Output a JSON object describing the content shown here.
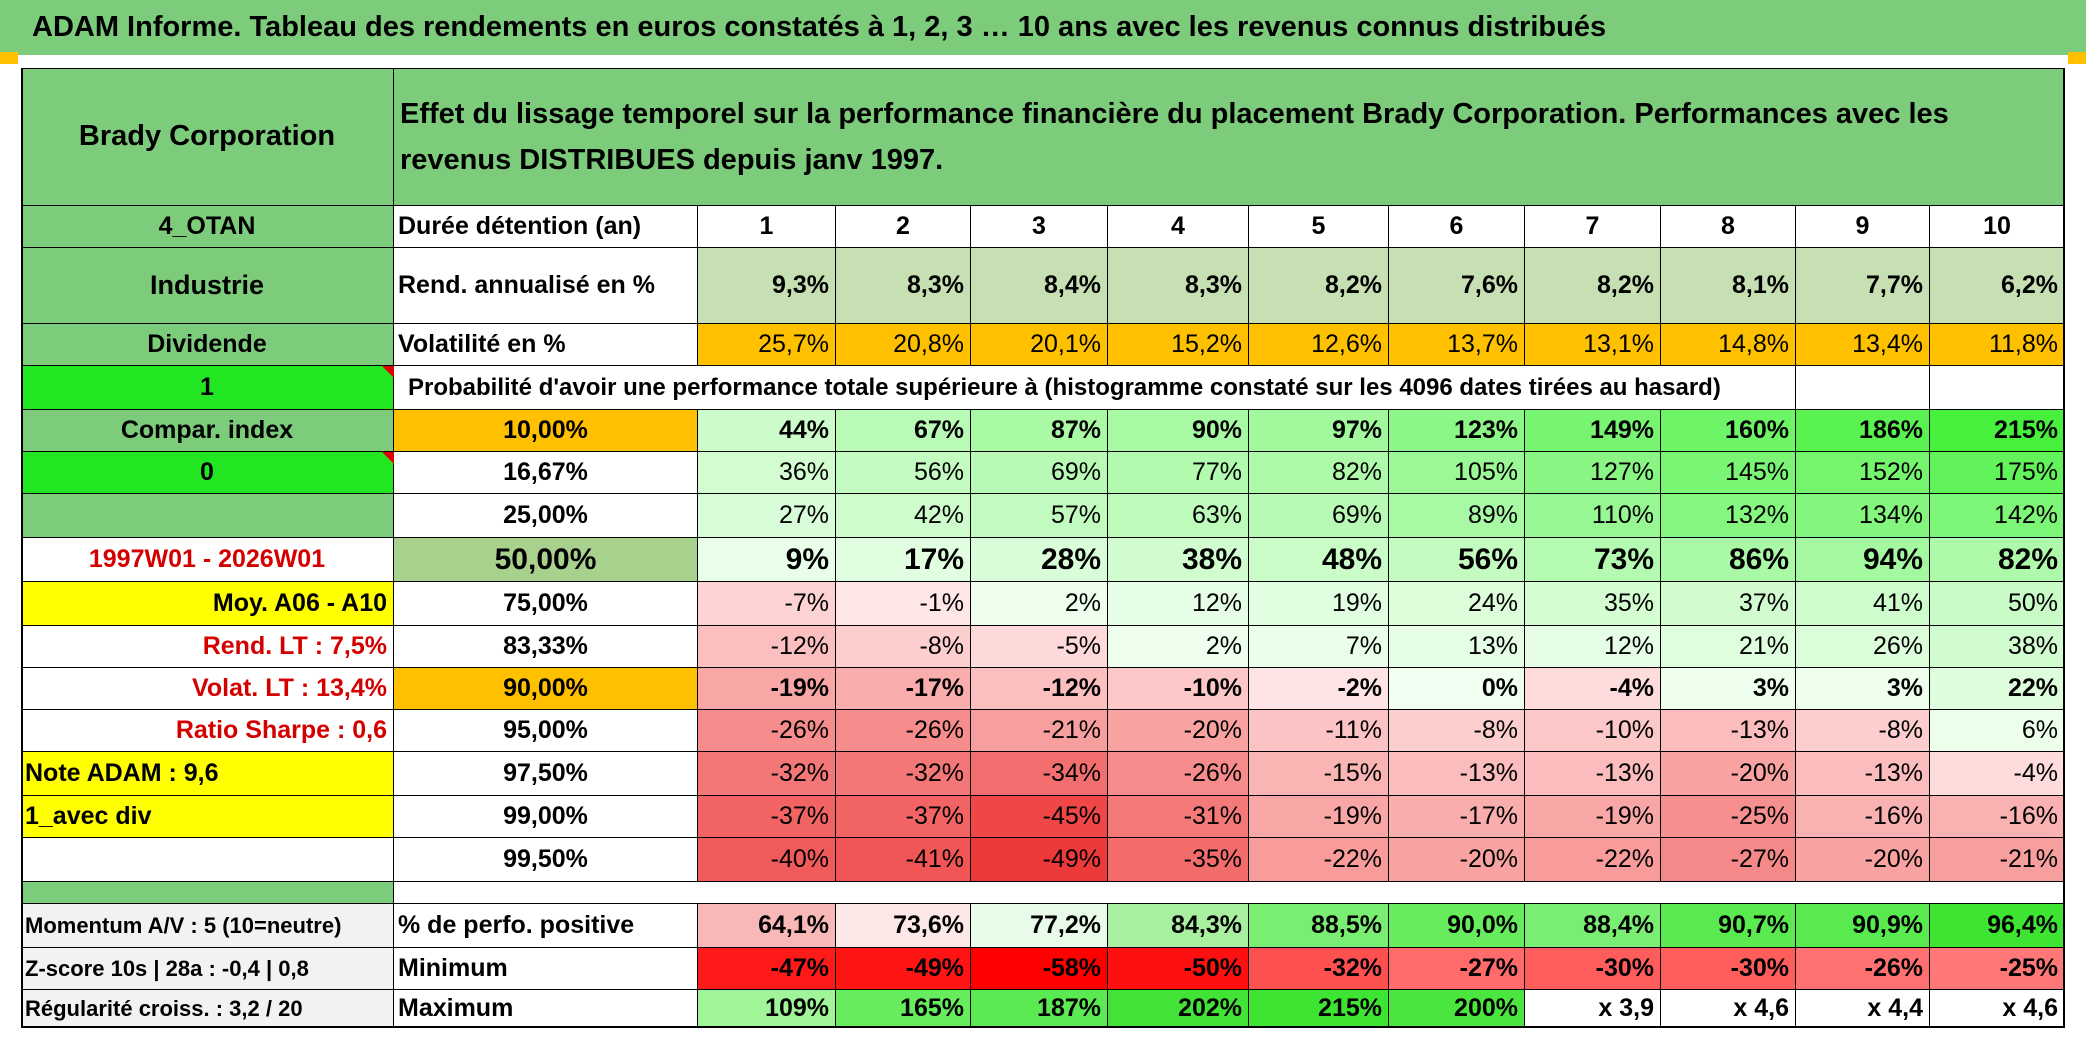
{
  "title": "ADAM Informe. Tableau des rendements en euros constatés à 1, 2, 3 … 10 ans avec les revenus connus distribués",
  "left": {
    "company": "Brady Corporation",
    "code": "4_OTAN",
    "sector": "Industrie",
    "dividend_label": "Dividende",
    "flag1": "1",
    "compar_index": "Compar. index",
    "flag0": "0",
    "period": "1997W01 - 2026W01",
    "moy": "Moy. A06 - A10",
    "rend_lt": "Rend. LT :   7,5%",
    "volat_lt": "Volat. LT :   13,4%",
    "sharpe": "Ratio Sharpe :    0,6",
    "note": "Note ADAM : 9,6",
    "avec_div": "1_avec div"
  },
  "header_text": "Effet du lissage temporel sur la performance financière du placement Brady Corporation. Performances avec les revenus DISTRIBUES depuis janv 1997.",
  "labels": {
    "duree": "Durée détention (an)",
    "rend": "Rend. annualisé en %",
    "vol": "Volatilité en %",
    "proba": "Probabilité d'avoir une performance totale supérieure à (histogramme constaté sur les 4096 dates tirées au hasard)",
    "positive": "% de perfo. positive",
    "minimum": "Minimum",
    "maximum": "Maximum"
  },
  "years": [
    "1",
    "2",
    "3",
    "4",
    "5",
    "6",
    "7",
    "8",
    "9",
    "10"
  ],
  "rend": [
    "9,3%",
    "8,3%",
    "8,4%",
    "8,3%",
    "8,2%",
    "7,6%",
    "8,2%",
    "8,1%",
    "7,7%",
    "6,2%"
  ],
  "vol": [
    "25,7%",
    "20,8%",
    "20,1%",
    "15,2%",
    "12,6%",
    "13,7%",
    "13,1%",
    "14,8%",
    "13,4%",
    "11,8%"
  ],
  "percentiles": [
    {
      "pct": "10,00%",
      "values": [
        "44%",
        "67%",
        "87%",
        "90%",
        "97%",
        "123%",
        "149%",
        "160%",
        "186%",
        "215%"
      ]
    },
    {
      "pct": "16,67%",
      "values": [
        "36%",
        "56%",
        "69%",
        "77%",
        "82%",
        "105%",
        "127%",
        "145%",
        "152%",
        "175%"
      ]
    },
    {
      "pct": "25,00%",
      "values": [
        "27%",
        "42%",
        "57%",
        "63%",
        "69%",
        "89%",
        "110%",
        "132%",
        "134%",
        "142%"
      ]
    },
    {
      "pct": "50,00%",
      "values": [
        "9%",
        "17%",
        "28%",
        "38%",
        "48%",
        "56%",
        "73%",
        "86%",
        "94%",
        "82%"
      ]
    },
    {
      "pct": "75,00%",
      "values": [
        "-7%",
        "-1%",
        "2%",
        "12%",
        "19%",
        "24%",
        "35%",
        "37%",
        "41%",
        "50%"
      ]
    },
    {
      "pct": "83,33%",
      "values": [
        "-12%",
        "-8%",
        "-5%",
        "2%",
        "7%",
        "13%",
        "12%",
        "21%",
        "26%",
        "38%"
      ]
    },
    {
      "pct": "90,00%",
      "values": [
        "-19%",
        "-17%",
        "-12%",
        "-10%",
        "-2%",
        "0%",
        "-4%",
        "3%",
        "3%",
        "22%"
      ]
    },
    {
      "pct": "95,00%",
      "values": [
        "-26%",
        "-26%",
        "-21%",
        "-20%",
        "-11%",
        "-8%",
        "-10%",
        "-13%",
        "-8%",
        "6%"
      ]
    },
    {
      "pct": "97,50%",
      "values": [
        "-32%",
        "-32%",
        "-34%",
        "-26%",
        "-15%",
        "-13%",
        "-13%",
        "-20%",
        "-13%",
        "-4%"
      ]
    },
    {
      "pct": "99,00%",
      "values": [
        "-37%",
        "-37%",
        "-45%",
        "-31%",
        "-19%",
        "-17%",
        "-19%",
        "-25%",
        "-16%",
        "-16%"
      ]
    },
    {
      "pct": "99,50%",
      "values": [
        "-40%",
        "-41%",
        "-49%",
        "-35%",
        "-22%",
        "-20%",
        "-22%",
        "-27%",
        "-20%",
        "-21%"
      ]
    }
  ],
  "bottom_left": {
    "momentum": "Momentum A/V : 5 (10=neutre)",
    "zscore": "Z-score 10s | 28a : -0,4 | 0,8",
    "regularite": "Régularité croiss. : 3,2 / 20"
  },
  "positive": [
    "64,1%",
    "73,6%",
    "77,2%",
    "84,3%",
    "88,5%",
    "90,0%",
    "88,4%",
    "90,7%",
    "90,9%",
    "96,4%"
  ],
  "minimum": [
    "-47%",
    "-49%",
    "-58%",
    "-50%",
    "-32%",
    "-27%",
    "-30%",
    "-30%",
    "-26%",
    "-25%"
  ],
  "maximum": [
    "109%",
    "165%",
    "187%",
    "202%",
    "215%",
    "200%",
    "x 3,9",
    "x 4,6",
    "x 4,4",
    "x 4,6"
  ],
  "colors": {
    "green_header": "#7ccc7b",
    "bright_green": "#22e622",
    "orange": "#ffc000",
    "yellow": "#ffff00",
    "light_green": "#c6e0b4",
    "red_text": "#d40000"
  }
}
